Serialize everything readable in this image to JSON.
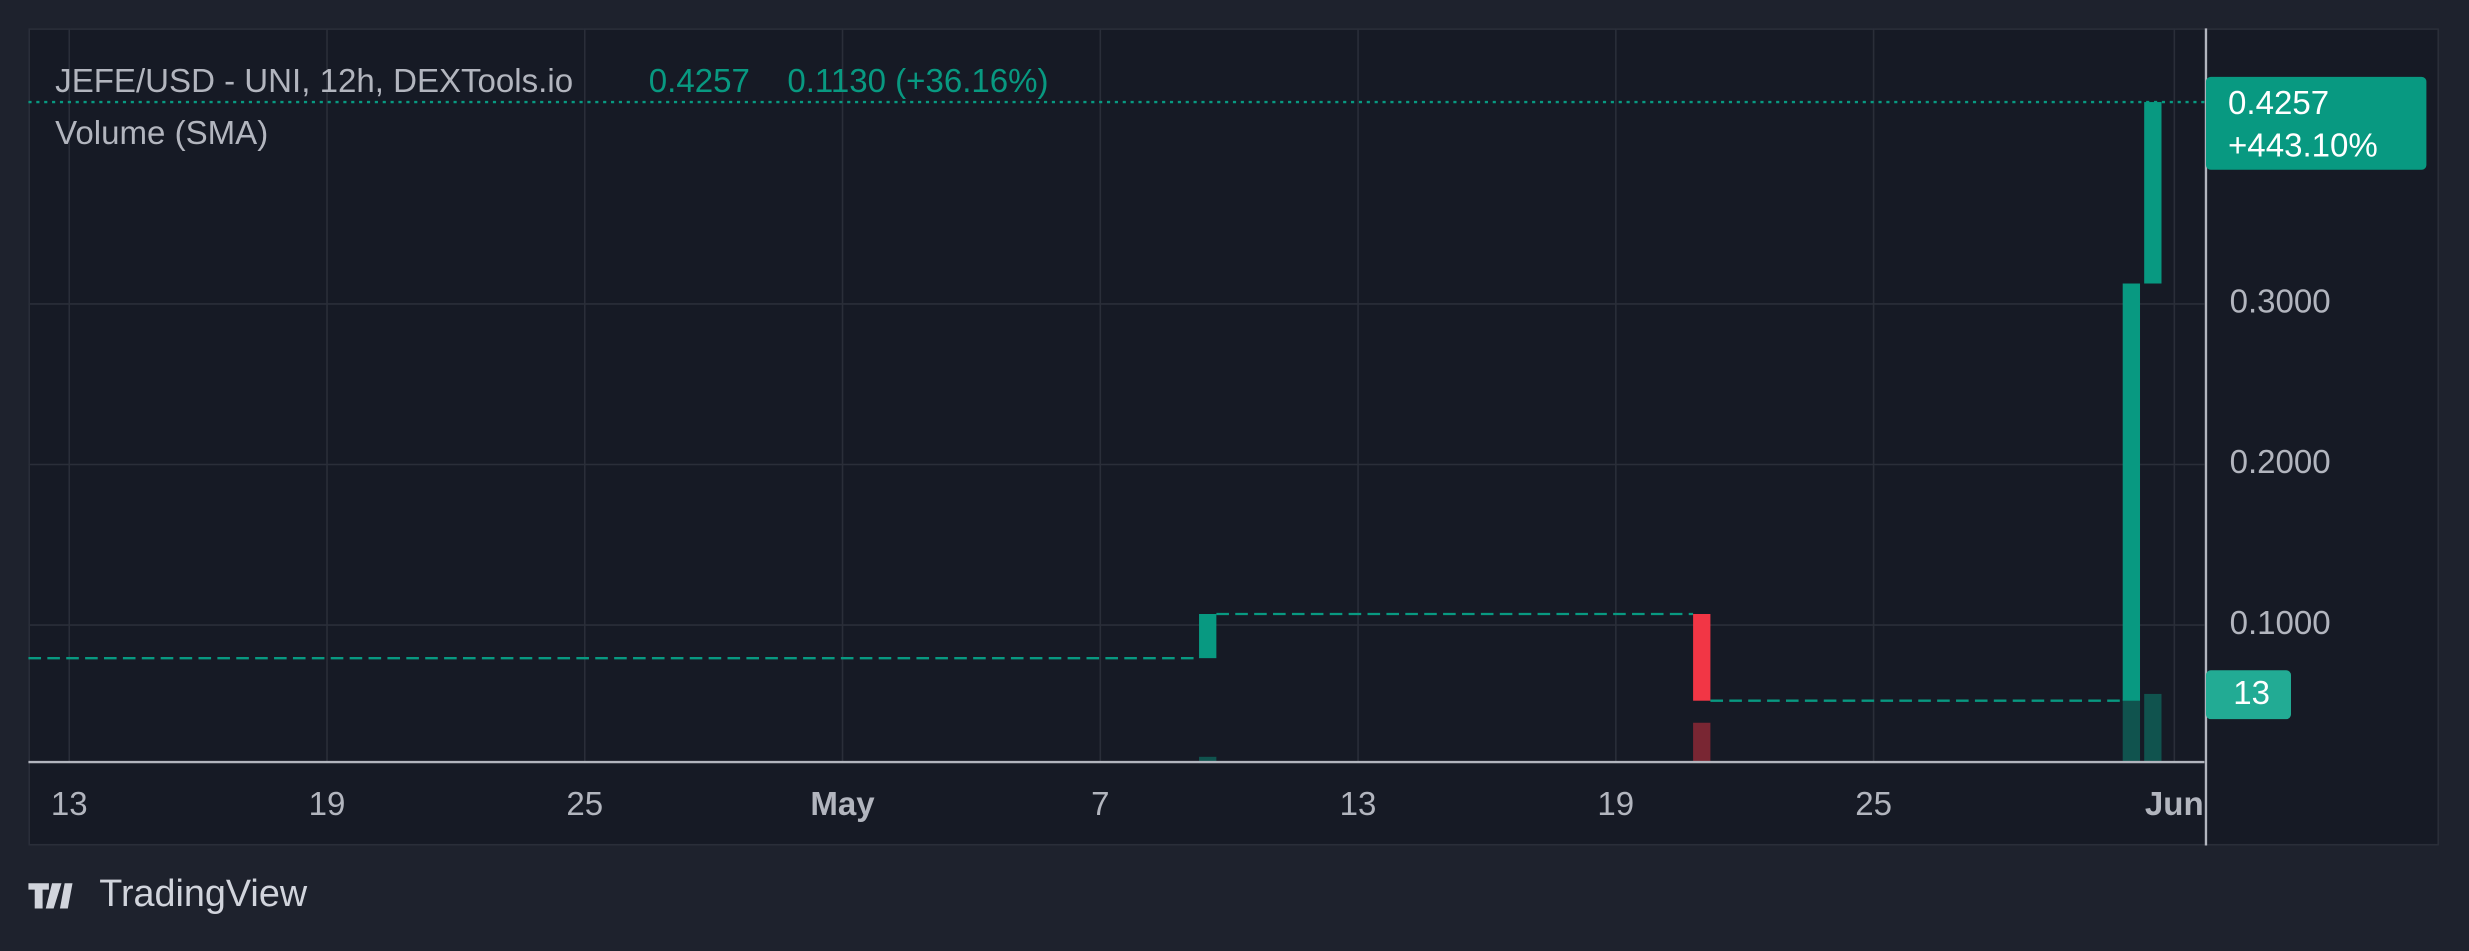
{
  "chart_data": {
    "type": "candlestick",
    "title": "JEFE/USD - UNI, 12h, DEXTools.io",
    "header_price": "0.4257",
    "header_change": "0.1130 (+36.16%)",
    "volume_title": "Volume (SMA)",
    "brand": "TradingView",
    "x": [
      39.5,
      51.0,
      61.0,
      61.5
    ],
    "open": [
      0.0794,
      0.1069,
      0.0529,
      0.3127
    ],
    "close": [
      0.1069,
      0.0529,
      0.3127,
      0.4257
    ],
    "volume": [
      1,
      7.5,
      12,
      13
    ],
    "volume_sma": 13,
    "up_color": "#089981",
    "down_color": "#f23645",
    "last_price": {
      "value": 0.4257,
      "label": "0.4257"
    },
    "last_change": "+443.10%",
    "xlim": [
      12.05,
      62.7
    ],
    "xticks": [
      {
        "value": 13,
        "label": "13"
      },
      {
        "value": 19,
        "label": "19"
      },
      {
        "value": 25,
        "label": "25"
      },
      {
        "value": 31,
        "label": "May"
      },
      {
        "value": 37,
        "label": "7"
      },
      {
        "value": 43,
        "label": "13"
      },
      {
        "value": 49,
        "label": "19"
      },
      {
        "value": 55,
        "label": "25"
      },
      {
        "value": 62,
        "label": "Jun"
      }
    ],
    "ylim": [
      0.0147,
      0.4716
    ],
    "yticks": [
      {
        "value": 0.1,
        "label": "0.1000"
      },
      {
        "value": 0.2,
        "label": "0.2000"
      },
      {
        "value": 0.3,
        "label": "0.3000"
      }
    ],
    "vlim": [
      0,
      140
    ],
    "grid": true
  }
}
